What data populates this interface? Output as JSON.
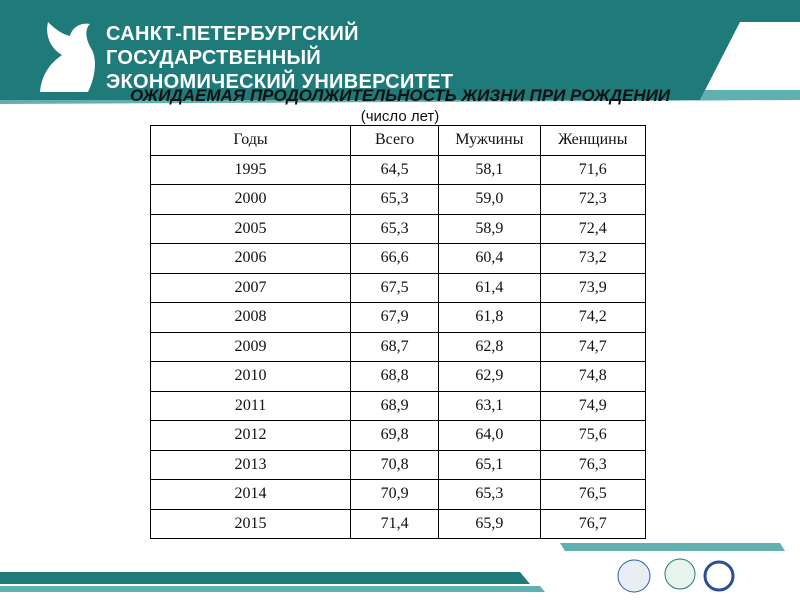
{
  "header": {
    "university": [
      "САНКТ-ПЕТЕРБУРГСКИЙ",
      "ГОСУДАРСТВЕННЫЙ",
      "ЭКОНОМИЧЕСКИЙ УНИВЕРСИТЕТ"
    ]
  },
  "title": "ОЖИДАЕМАЯ ПРОДОЛЖИТЕЛЬНОСТЬ ЖИЗНИ ПРИ РОЖДЕНИИ",
  "subtitle": "(число лет)",
  "table": {
    "columns": [
      "Годы",
      "Всего",
      "Мужчины",
      "Женщины"
    ],
    "rows": [
      [
        "1995",
        "64,5",
        "58,1",
        "71,6"
      ],
      [
        "2000",
        "65,3",
        "59,0",
        "72,3"
      ],
      [
        "2005",
        "65,3",
        "58,9",
        "72,4"
      ],
      [
        "2006",
        "66,6",
        "60,4",
        "73,2"
      ],
      [
        "2007",
        "67,5",
        "61,4",
        "73,9"
      ],
      [
        "2008",
        "67,9",
        "61,8",
        "74,2"
      ],
      [
        "2009",
        "68,7",
        "62,8",
        "74,7"
      ],
      [
        "2010",
        "68,8",
        "62,9",
        "74,8"
      ],
      [
        "2011",
        "68,9",
        "63,1",
        "74,9"
      ],
      [
        "2012",
        "69,8",
        "64,0",
        "75,6"
      ],
      [
        "2013",
        "70,8",
        "65,1",
        "76,3"
      ],
      [
        "2014",
        "70,9",
        "65,3",
        "76,5"
      ],
      [
        "2015",
        "71,4",
        "65,9",
        "76,7"
      ]
    ]
  }
}
